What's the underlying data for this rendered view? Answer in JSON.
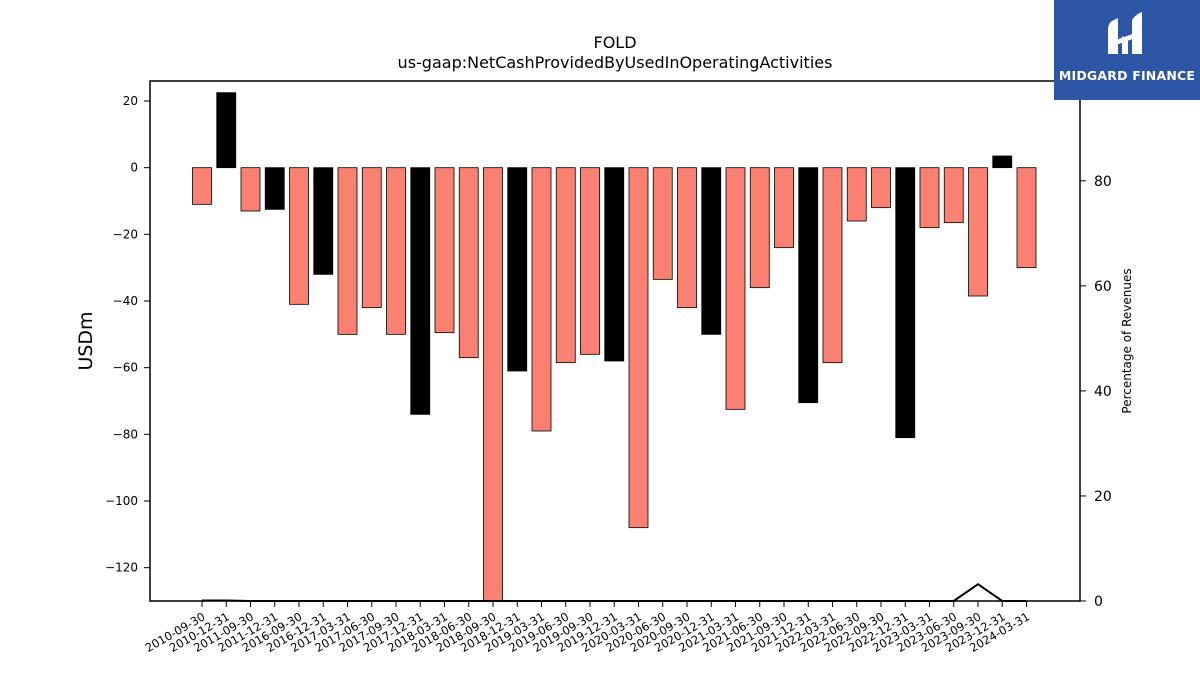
{
  "chart_data": {
    "type": "bar",
    "title": "FOLD",
    "subtitle": "us-gaap:NetCashProvidedByUsedInOperatingActivities",
    "ylabel": "USDm",
    "y2label": "Percentage of Revenues",
    "ylim": [
      -130,
      26
    ],
    "y2lim": [
      0,
      99
    ],
    "yticks": [
      20,
      0,
      -20,
      -40,
      -60,
      -80,
      -100,
      -120
    ],
    "y2ticks": [
      0,
      20,
      40,
      60,
      80
    ],
    "categories": [
      "2010-09-30",
      "2010-12-31",
      "2011-09-30",
      "2011-12-31",
      "2016-09-30",
      "2016-12-31",
      "2017-03-31",
      "2017-06-30",
      "2017-09-30",
      "2017-12-31",
      "2018-03-31",
      "2018-06-30",
      "2018-09-30",
      "2018-12-31",
      "2019-03-31",
      "2019-06-30",
      "2019-09-30",
      "2019-12-31",
      "2020-03-31",
      "2020-06-30",
      "2020-09-30",
      "2020-12-31",
      "2021-03-31",
      "2021-06-30",
      "2021-09-30",
      "2021-12-31",
      "2022-03-31",
      "2022-06-30",
      "2022-09-30",
      "2022-12-31",
      "2023-03-31",
      "2023-06-30",
      "2023-09-30",
      "2023-12-31",
      "2024-03-31"
    ],
    "series": [
      {
        "values": [
          -11,
          22.5,
          -13,
          -12.5,
          -41,
          -32,
          -50,
          -42,
          -50,
          -74,
          -49.5,
          -57,
          -133,
          -61,
          -79,
          -58.5,
          -56,
          -58,
          -108,
          -33.5,
          -42,
          -50,
          -72.5,
          -36,
          -24,
          -70.5,
          -58.5,
          -16,
          -12,
          -81,
          -18,
          -16.5,
          -38.5,
          3.5,
          -30
        ],
        "colors": [
          "#fa8072",
          "#000000",
          "#fa8072",
          "#000000",
          "#fa8072",
          "#000000",
          "#fa8072",
          "#fa8072",
          "#fa8072",
          "#000000",
          "#fa8072",
          "#fa8072",
          "#fa8072",
          "#000000",
          "#fa8072",
          "#fa8072",
          "#fa8072",
          "#000000",
          "#fa8072",
          "#fa8072",
          "#fa8072",
          "#000000",
          "#fa8072",
          "#fa8072",
          "#fa8072",
          "#000000",
          "#fa8072",
          "#fa8072",
          "#fa8072",
          "#000000",
          "#fa8072",
          "#fa8072",
          "#fa8072",
          "#000000",
          "#fa8072"
        ]
      },
      {
        "values": [
          0.1,
          0.1,
          0,
          0,
          0,
          0,
          0,
          0,
          0,
          0,
          0,
          0,
          0,
          0,
          0,
          0,
          0,
          0,
          0,
          0,
          0,
          0,
          0,
          0,
          0,
          0,
          0,
          0,
          0,
          0,
          0,
          0,
          3.2,
          0,
          0
        ]
      }
    ],
    "grid": false,
    "legend": "none"
  },
  "logo": {
    "text": "MIDGARD FINANCE"
  },
  "colors": {
    "negative": "#fa8072",
    "q4": "#000000",
    "logo_bg": "#2e56a6"
  }
}
